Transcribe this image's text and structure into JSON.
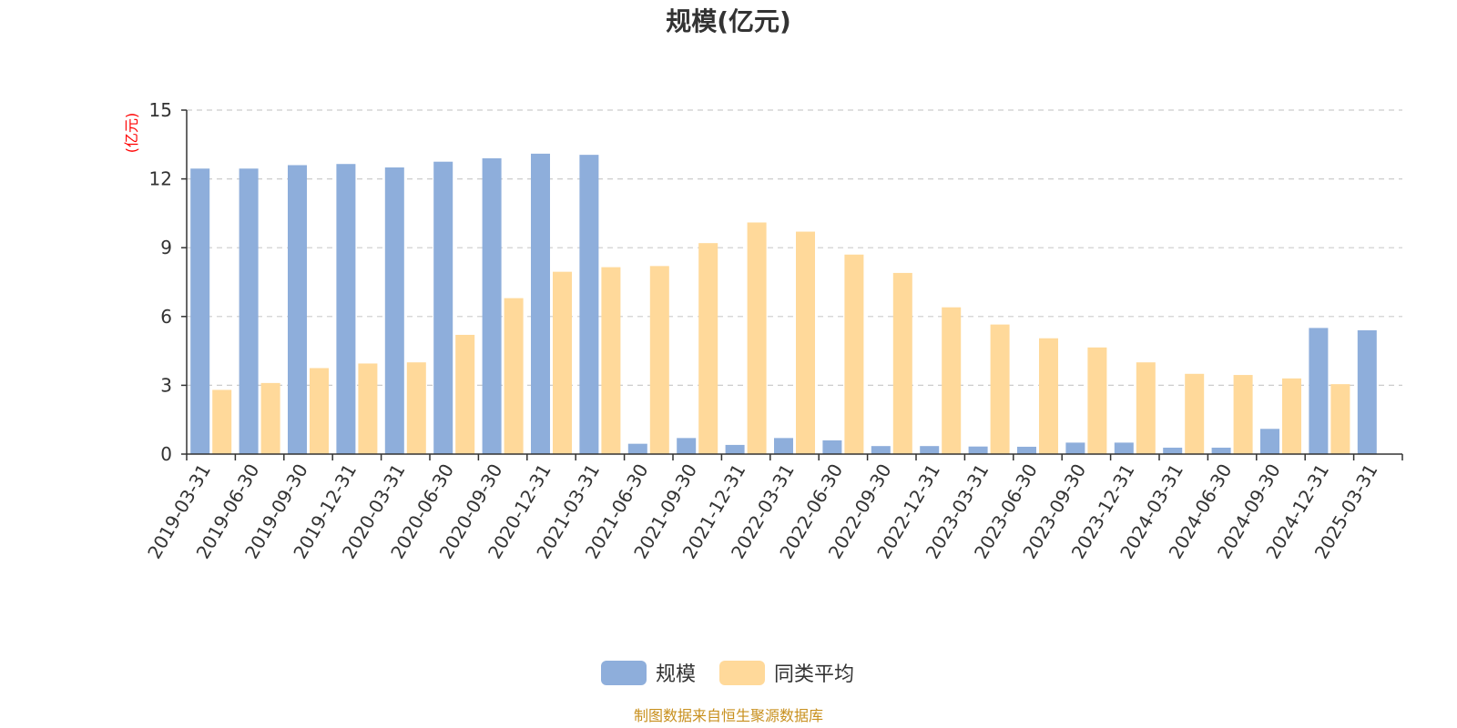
{
  "chart_data": {
    "type": "bar",
    "title": "规模(亿元)",
    "ylabel": "(亿元)",
    "xlabel": "",
    "ylim": [
      0,
      15
    ],
    "yticks": [
      0,
      3,
      6,
      9,
      12,
      15
    ],
    "grid": true,
    "legend_position": "bottom",
    "categories": [
      "2019-03-31",
      "2019-06-30",
      "2019-09-30",
      "2019-12-31",
      "2020-03-31",
      "2020-06-30",
      "2020-09-30",
      "2020-12-31",
      "2021-03-31",
      "2021-06-30",
      "2021-09-30",
      "2021-12-31",
      "2022-03-31",
      "2022-06-30",
      "2022-09-30",
      "2022-12-31",
      "2023-03-31",
      "2023-06-30",
      "2023-09-30",
      "2023-12-31",
      "2024-03-31",
      "2024-06-30",
      "2024-09-30",
      "2024-12-31",
      "2025-03-31"
    ],
    "series": [
      {
        "name": "规模",
        "color": "#8eaedb",
        "values": [
          12.45,
          12.45,
          12.6,
          12.65,
          12.5,
          12.75,
          12.9,
          13.1,
          13.05,
          0.45,
          0.7,
          0.4,
          0.7,
          0.6,
          0.35,
          0.35,
          0.33,
          0.32,
          0.5,
          0.5,
          0.28,
          0.28,
          1.1,
          5.5,
          5.4
        ]
      },
      {
        "name": "同类平均",
        "color": "#ffd99a",
        "values": [
          2.8,
          3.1,
          3.75,
          3.95,
          4.0,
          5.2,
          6.8,
          7.95,
          8.15,
          8.2,
          9.2,
          10.1,
          9.7,
          8.7,
          7.9,
          6.4,
          5.65,
          5.05,
          4.65,
          4.0,
          3.5,
          3.45,
          3.3,
          3.05,
          null
        ]
      }
    ]
  },
  "colors": {
    "axis": "#333333",
    "grid": "#cccccc",
    "ylabel": "#ff0000",
    "source": "#c8901e"
  },
  "source_text": "制图数据来自恒生聚源数据库"
}
